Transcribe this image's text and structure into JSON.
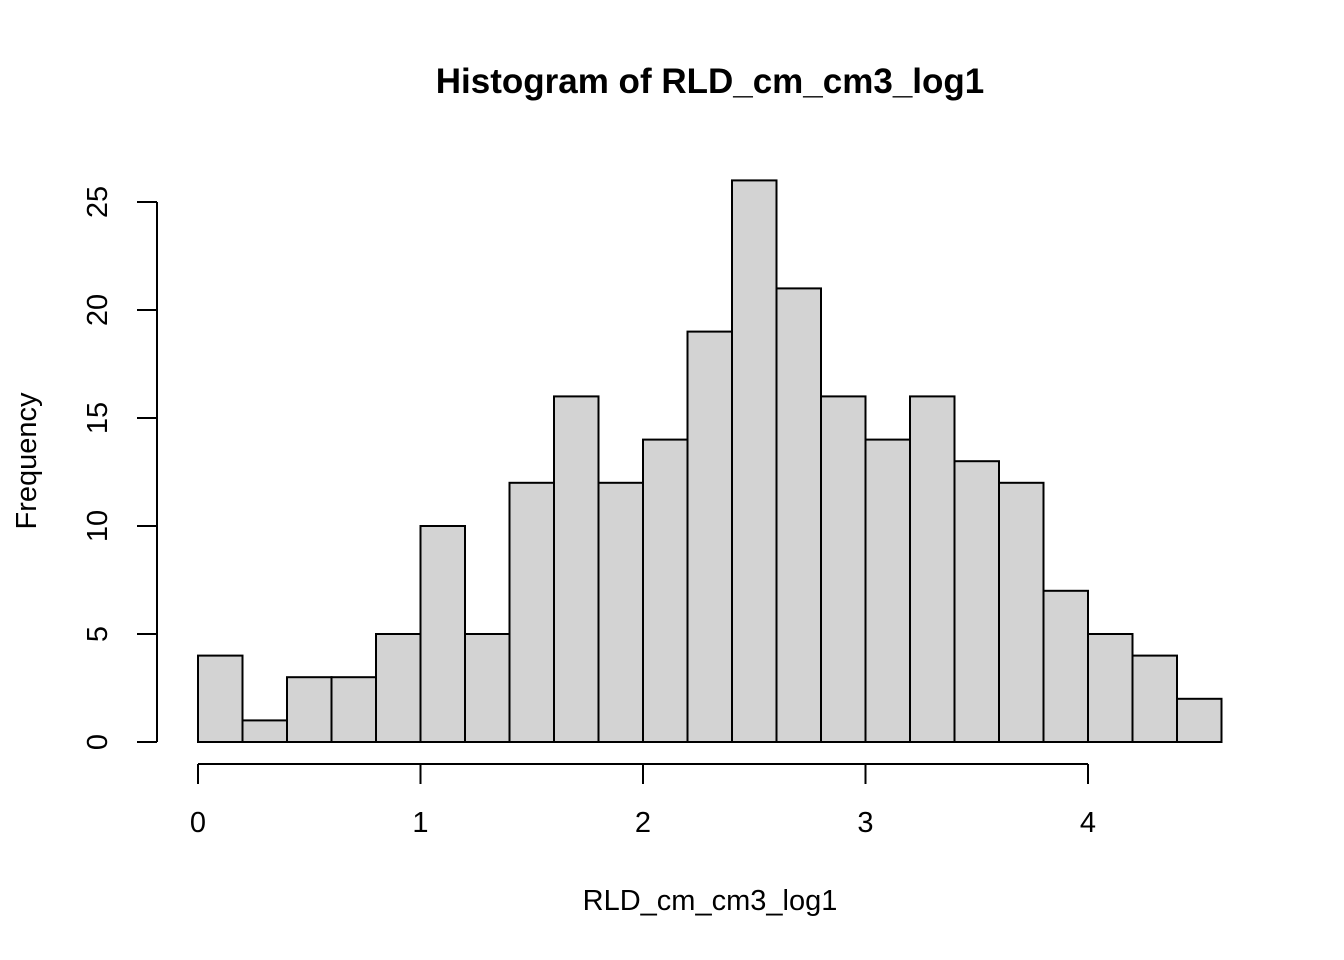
{
  "chart_data": {
    "type": "bar",
    "title": "Histogram of RLD_cm_cm3_log1",
    "xlabel": "RLD_cm_cm3_log1",
    "ylabel": "Frequency",
    "bin_edges": [
      0,
      0.2,
      0.4,
      0.6,
      0.8,
      1.0,
      1.2,
      1.4,
      1.6,
      1.8,
      2.0,
      2.2,
      2.4,
      2.6,
      2.8,
      3.0,
      3.2,
      3.4,
      3.6,
      3.8,
      4.0,
      4.2,
      4.4,
      4.6
    ],
    "values": [
      4,
      1,
      3,
      3,
      5,
      10,
      5,
      12,
      16,
      12,
      14,
      19,
      26,
      21,
      16,
      14,
      16,
      13,
      12,
      7,
      5,
      4,
      2
    ],
    "xticks": [
      "0",
      "1",
      "2",
      "3",
      "4"
    ],
    "yticks": [
      "0",
      "5",
      "10",
      "15",
      "20",
      "25"
    ],
    "xlim": [
      0,
      4.6
    ],
    "ylim": [
      0,
      26
    ],
    "bar_color": "#d3d3d3",
    "grid": false,
    "legend": "none"
  }
}
